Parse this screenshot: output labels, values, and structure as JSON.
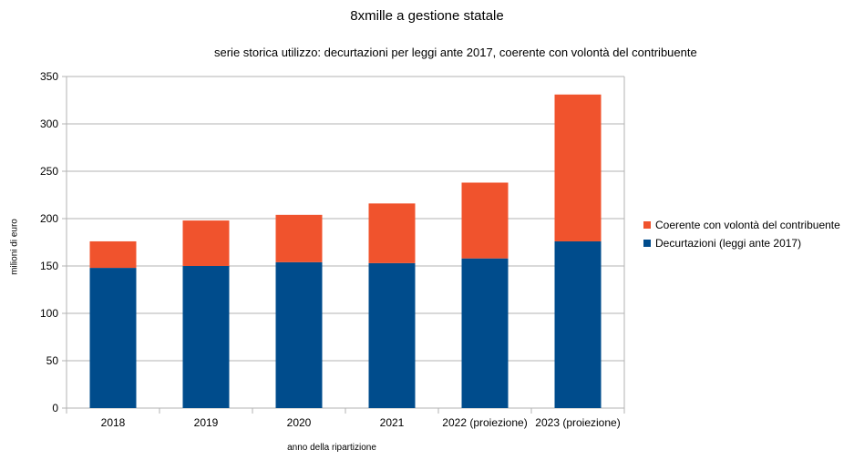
{
  "chart_data": {
    "type": "bar",
    "stacked": true,
    "title": "8xmille a gestione statale",
    "subtitle": "serie storica utilizzo: decurtazioni per leggi ante 2017, coerente con volontà del contribuente",
    "xlabel": "anno della ripartizione",
    "ylabel": "milioni di euro",
    "categories": [
      "2018",
      "2019",
      "2020",
      "2021",
      "2022 (proiezione)",
      "2023 (proiezione)"
    ],
    "ylim": [
      0,
      350
    ],
    "yticks": [
      0,
      50,
      100,
      150,
      200,
      250,
      300,
      350
    ],
    "grid": true,
    "legend_position": "right",
    "series": [
      {
        "name": "Decurtazioni (leggi ante 2017)",
        "color": "#004c8c",
        "values": [
          148,
          150,
          154,
          153,
          158,
          176
        ]
      },
      {
        "name": "Coerente con volontà del contribuente",
        "color": "#f0532d",
        "values": [
          28,
          48,
          50,
          63,
          80,
          155
        ]
      }
    ]
  }
}
